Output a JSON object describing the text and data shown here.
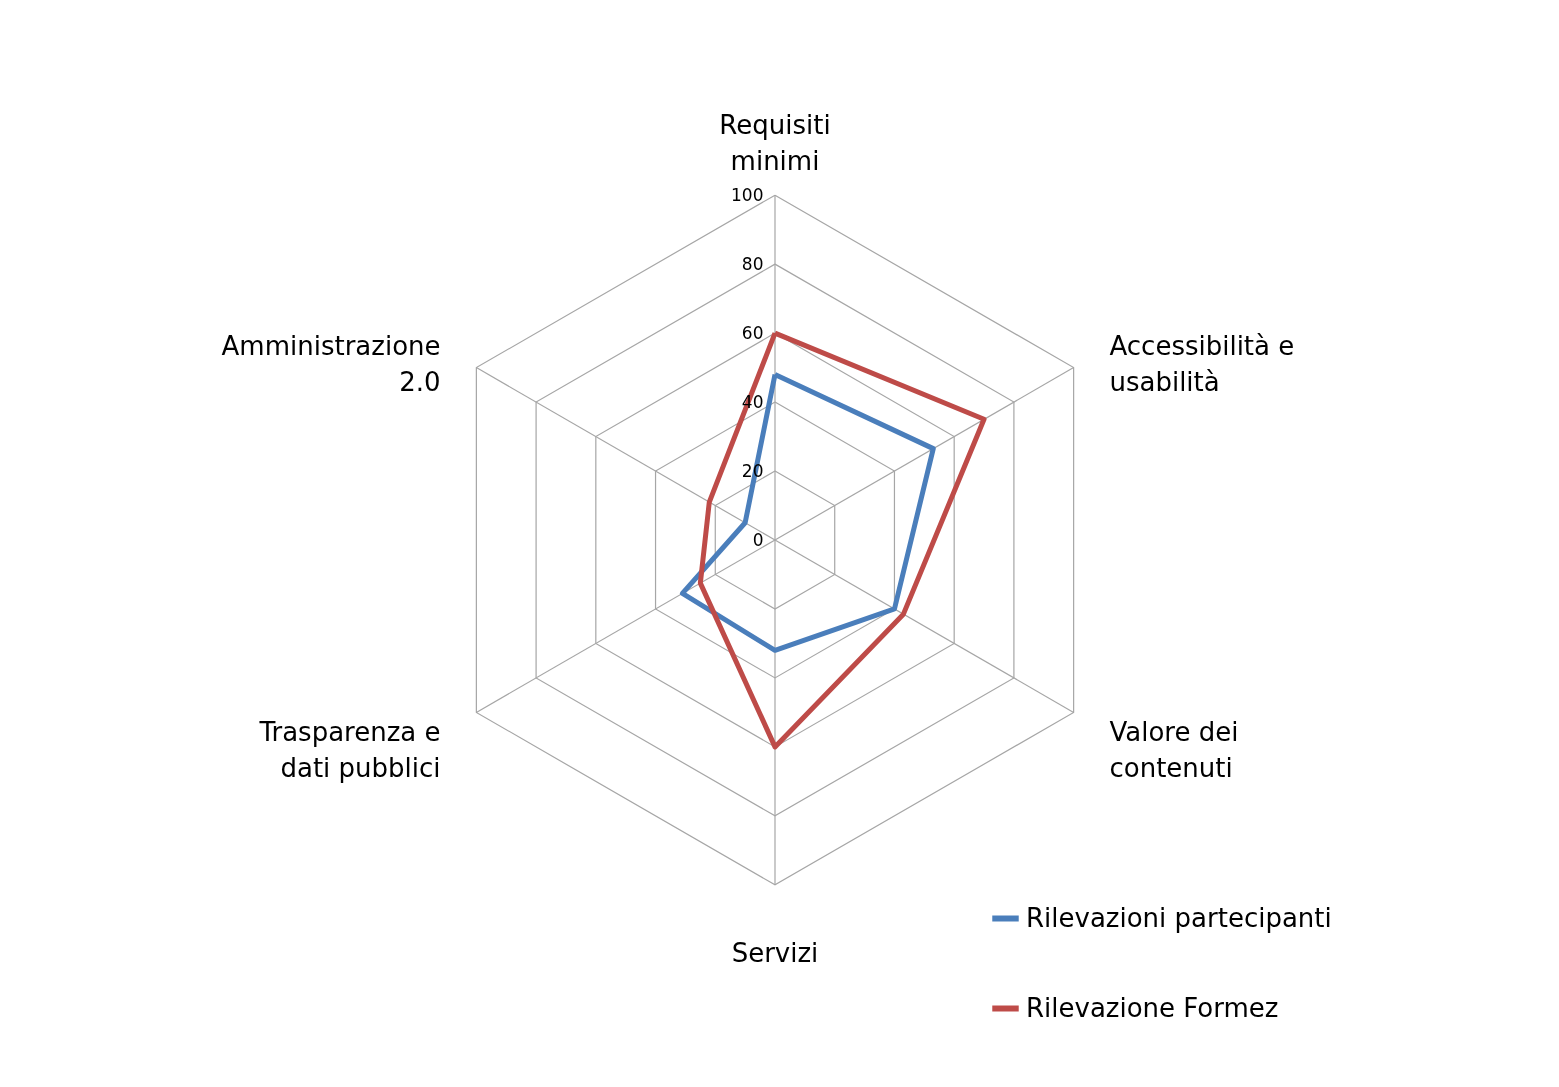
{
  "chart_data": {
    "type": "radar",
    "categories": [
      "Requisiti minimi",
      "Accessibilità e usabilità",
      "Valore dei contenuti",
      "Servizi",
      "Trasparenza e dati pubblici",
      "Amministrazione 2.0"
    ],
    "series": [
      {
        "name": "Rilevazioni partecipanti",
        "color": "#4a7ebb",
        "values": [
          48,
          53,
          40,
          32,
          31,
          10
        ]
      },
      {
        "name": "Rilevazione Formez",
        "color": "#be4b48",
        "values": [
          60,
          70,
          43,
          60,
          25,
          22
        ]
      }
    ],
    "ylim": [
      0,
      100
    ],
    "yticks": [
      0,
      20,
      40,
      60,
      80,
      100
    ],
    "grid": true,
    "legend": "bottom right"
  }
}
